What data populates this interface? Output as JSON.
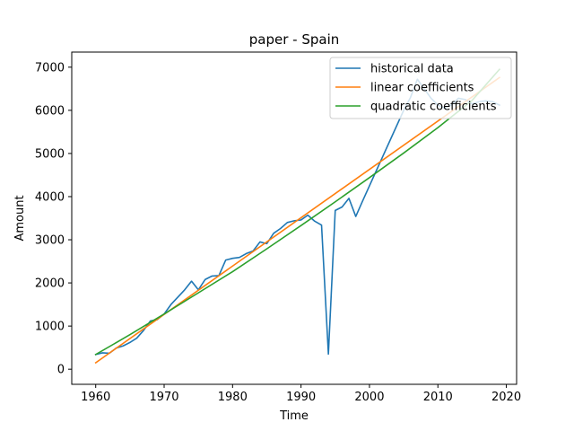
{
  "chart_data": {
    "type": "line",
    "title": "paper - Spain",
    "xlabel": "Time",
    "ylabel": "Amount",
    "xlim": [
      1956.5,
      2021.5
    ],
    "ylim": [
      -350,
      7350
    ],
    "xticks": [
      1960,
      1970,
      1980,
      1990,
      2000,
      2010,
      2020
    ],
    "yticks": [
      0,
      1000,
      2000,
      3000,
      4000,
      5000,
      6000,
      7000
    ],
    "grid": false,
    "legend_position": "top-right",
    "series": [
      {
        "name": "historical data",
        "color": "#1f77b4",
        "x": [
          1960,
          1961,
          1962,
          1963,
          1964,
          1965,
          1966,
          1967,
          1968,
          1969,
          1970,
          1971,
          1972,
          1973,
          1974,
          1975,
          1976,
          1977,
          1978,
          1979,
          1980,
          1981,
          1982,
          1983,
          1984,
          1985,
          1986,
          1987,
          1988,
          1989,
          1990,
          1991,
          1992,
          1993,
          1994,
          1995,
          1996,
          1997,
          1998,
          1999,
          2000,
          2001,
          2002,
          2003,
          2004,
          2005,
          2006,
          2007,
          2008,
          2009,
          2010,
          2011,
          2012,
          2013,
          2014,
          2015,
          2016,
          2017,
          2018,
          2019
        ],
        "y": [
          340,
          380,
          370,
          490,
          540,
          620,
          720,
          900,
          1120,
          1150,
          1280,
          1500,
          1670,
          1840,
          2040,
          1840,
          2080,
          2160,
          2170,
          2530,
          2570,
          2590,
          2680,
          2740,
          2950,
          2910,
          3150,
          3260,
          3400,
          3440,
          3460,
          3570,
          3430,
          3340,
          350,
          3680,
          3760,
          3960,
          3540,
          3900,
          4250,
          4600,
          4950,
          5300,
          5650,
          6000,
          6300,
          6720,
          6500,
          6280,
          6120,
          6050,
          6130,
          6280,
          6250,
          6150,
          6200,
          6220,
          6200,
          6120
        ]
      },
      {
        "name": "linear coefficients",
        "color": "#ff7f0e",
        "x": [
          1960,
          2019
        ],
        "y": [
          150,
          6760
        ]
      },
      {
        "name": "quadratic coefficients",
        "color": "#2ca02c",
        "x": [
          1960,
          1965,
          1970,
          1975,
          1980,
          1985,
          1990,
          1995,
          2000,
          2005,
          2010,
          2015,
          2019
        ],
        "y": [
          340,
          800,
          1280,
          1770,
          2260,
          2790,
          3330,
          3880,
          4440,
          5010,
          5600,
          6230,
          6950
        ]
      }
    ]
  }
}
